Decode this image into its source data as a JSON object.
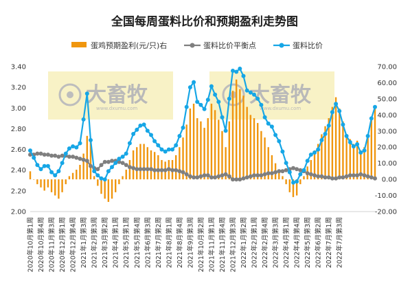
{
  "chart_data": {
    "type": "bar+line",
    "title": "全国每周蛋料比价和预期盈利走势图",
    "legend": [
      {
        "name": "蛋鸡预期盈利(元/只)右",
        "kind": "bar",
        "color": "#f0960e"
      },
      {
        "name": "蛋料比价平衡点",
        "kind": "line",
        "color": "#7f7f7f"
      },
      {
        "name": "蛋料比价",
        "kind": "line",
        "color": "#16a6e6"
      }
    ],
    "legend_position": "top",
    "y_left": {
      "min": 2.0,
      "max": 3.4,
      "step": 0.2,
      "ticks": [
        "2.00",
        "2.20",
        "2.40",
        "2.60",
        "2.80",
        "3.00",
        "3.20",
        "3.40"
      ]
    },
    "y_right": {
      "min": -20,
      "max": 70,
      "step": 10,
      "ticks": [
        "-20.00",
        "-10.00",
        "0.00",
        "10.00",
        "20.00",
        "30.00",
        "40.00",
        "50.00",
        "60.00",
        "70.00"
      ]
    },
    "grid": false,
    "x_labels": [
      "2020年10月第1周",
      "2020年10月第4周",
      "2020年11月第3周",
      "2020年12月第1周",
      "2020年12月第4周",
      "2021年1月第3周",
      "2021年2月第3周",
      "2021年3月第2周",
      "2021年4月第1周",
      "2021年5月第1周",
      "2021年5月第4周",
      "2021年6月第3周",
      "2021年7月第2周",
      "2021年8月第1周",
      "2021年8月第4周",
      "2021年9月第3周",
      "2021年10月第2周",
      "2021年11月第1周",
      "2021年11月第4周",
      "2021年12月第3周",
      "2022年1月第2周",
      "2022年2月第1周",
      "2022年2月第4周",
      "2022年3月第3周",
      "2022年4月第1周",
      "2022年4月第4周",
      "2022年5月第3周",
      "2022年6月第2周",
      "2022年7月第1周",
      "2022年7月第3周"
    ],
    "x_label_step": 3,
    "series": [
      {
        "name": "蛋料比价",
        "axis": "left",
        "values": [
          2.59,
          2.52,
          2.45,
          2.41,
          2.44,
          2.44,
          2.38,
          2.35,
          2.39,
          2.47,
          2.56,
          2.61,
          2.63,
          2.62,
          2.66,
          2.89,
          3.14,
          2.69,
          2.39,
          2.35,
          2.32,
          2.31,
          2.39,
          2.43,
          2.47,
          2.51,
          2.53,
          2.56,
          2.66,
          2.75,
          2.79,
          2.83,
          2.84,
          2.78,
          2.74,
          2.68,
          2.64,
          2.6,
          2.58,
          2.6,
          2.6,
          2.64,
          2.73,
          2.81,
          3.01,
          3.2,
          3.25,
          3.06,
          3.03,
          2.99,
          3.08,
          3.21,
          3.13,
          3.06,
          2.91,
          2.78,
          3.09,
          3.36,
          3.35,
          3.38,
          3.31,
          3.17,
          3.15,
          3.13,
          3.09,
          3.03,
          2.91,
          2.85,
          2.82,
          2.74,
          2.68,
          2.58,
          2.47,
          2.38,
          2.28,
          2.29,
          2.36,
          2.4,
          2.49,
          2.55,
          2.57,
          2.6,
          2.69,
          2.75,
          2.83,
          2.96,
          3.04,
          2.97,
          2.84,
          2.73,
          2.67,
          2.63,
          2.65,
          2.57,
          2.59,
          2.73,
          2.9,
          3.01
        ]
      },
      {
        "name": "蛋料比价平衡点",
        "axis": "left",
        "values": [
          2.55,
          2.55,
          2.56,
          2.56,
          2.55,
          2.55,
          2.54,
          2.54,
          2.53,
          2.54,
          2.54,
          2.53,
          2.53,
          2.52,
          2.51,
          2.5,
          2.49,
          2.44,
          2.42,
          2.41,
          2.45,
          2.48,
          2.48,
          2.49,
          2.49,
          2.48,
          2.47,
          2.45,
          2.43,
          2.42,
          2.41,
          2.41,
          2.41,
          2.41,
          2.41,
          2.4,
          2.4,
          2.4,
          2.4,
          2.41,
          2.4,
          2.4,
          2.39,
          2.38,
          2.36,
          2.34,
          2.33,
          2.33,
          2.34,
          2.35,
          2.35,
          2.33,
          2.33,
          2.34,
          2.35,
          2.36,
          2.34,
          2.31,
          2.31,
          2.31,
          2.32,
          2.33,
          2.34,
          2.35,
          2.35,
          2.35,
          2.36,
          2.37,
          2.37,
          2.38,
          2.39,
          2.39,
          2.4,
          2.41,
          2.42,
          2.41,
          2.4,
          2.39,
          2.37,
          2.36,
          2.35,
          2.34,
          2.34,
          2.33,
          2.33,
          2.32,
          2.32,
          2.33,
          2.33,
          2.34,
          2.35,
          2.35,
          2.35,
          2.36,
          2.35,
          2.34,
          2.33,
          2.32
        ]
      },
      {
        "name": "蛋鸡预期盈利(元/只)右",
        "axis": "right",
        "values": [
          5,
          0,
          -3,
          -5,
          -7,
          -5,
          -8,
          -10,
          -12,
          -8,
          -3,
          2,
          4,
          6,
          9,
          16,
          27,
          25,
          2,
          -4,
          -9,
          -12,
          -14,
          -12,
          -8,
          -3,
          2,
          6,
          12,
          18,
          20,
          22,
          22,
          20,
          18,
          17,
          15,
          12,
          11,
          12,
          12,
          15,
          20,
          26,
          34,
          44,
          47,
          38,
          36,
          32,
          38,
          47,
          43,
          37,
          30,
          20,
          36,
          55,
          62,
          56,
          52,
          45,
          40,
          38,
          35,
          30,
          26,
          20,
          15,
          10,
          6,
          2,
          -3,
          -8,
          -11,
          -10,
          -3,
          2,
          8,
          12,
          18,
          22,
          28,
          33,
          38,
          45,
          51,
          44,
          36,
          28,
          25,
          22,
          24,
          18,
          20,
          28,
          38,
          45
        ]
      }
    ]
  },
  "watermark": {
    "text": "大畜牧",
    "url": "www.dxumu.com"
  }
}
